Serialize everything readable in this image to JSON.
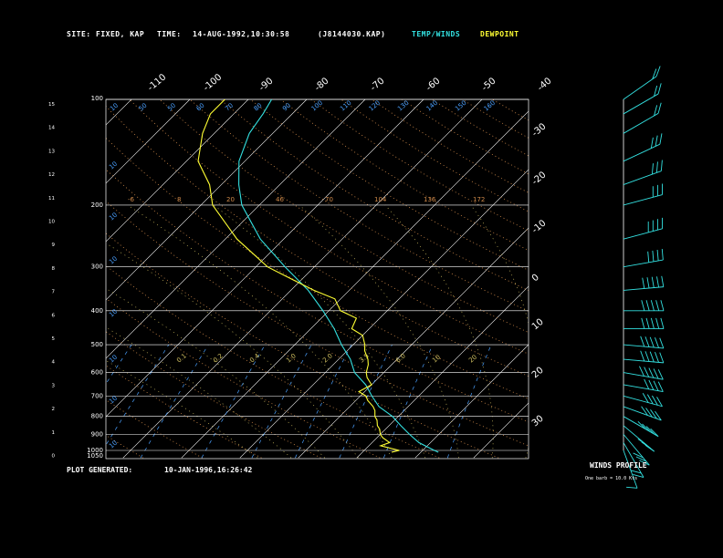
{
  "header": {
    "site_label": "SITE:",
    "site_value": "FIXED, KAP",
    "time_label": "TIME:",
    "time_value": "14-AUG-1992,10:30:58",
    "file_id": "(J8144030.KAP)",
    "legend_temp": "TEMP/WINDS",
    "legend_dew": "DEWPOINT"
  },
  "footer": {
    "generated_label": "PLOT GENERATED:",
    "generated_value": "10-JAN-1996,16:26:42",
    "winds_title": "WINDS PROFILE",
    "winds_note": "One barb = 10.0 Kts"
  },
  "colors": {
    "temperature": "#33e0e0",
    "dewpoint": "#ffff33",
    "isobar": "#ffffff",
    "isotherm": "#ffffff",
    "dry_adiabat": "#d08a4a",
    "moist_adiabat": "#d0c060",
    "mixing_ratio": "#4aa0ff",
    "wind_barb": "#33e0e0"
  },
  "chart_data": {
    "type": "line",
    "title": "",
    "xlabel": "",
    "ylabel": "",
    "pressure_levels": [
      "100",
      "200",
      "300",
      "400",
      "500",
      "600",
      "700",
      "800",
      "900",
      "1000",
      "1050"
    ],
    "km_ticks": [
      "15",
      "14",
      "13",
      "12",
      "11",
      "10",
      "9",
      "8",
      "7",
      "6",
      "5",
      "4",
      "3",
      "2",
      "1",
      "0"
    ],
    "top_temp_labels": [
      "-110",
      "-100",
      "-90",
      "-80",
      "-70",
      "-60",
      "-50",
      "-40"
    ],
    "right_temp_labels": [
      "-30",
      "-20",
      "-10",
      "0",
      "10",
      "20",
      "30"
    ],
    "dry_adiabat_labels": [
      "-6",
      "8",
      "20",
      "46",
      "70",
      "104",
      "136",
      "172"
    ],
    "mixing_ratio_top_labels": [
      "10",
      "50",
      "50",
      "60",
      "70",
      "80",
      "90",
      "100",
      "110",
      "120",
      "130",
      "140",
      "150",
      "160"
    ],
    "mixing_ratio_left_labels": [
      "10",
      "10",
      "10",
      "10",
      "10",
      "10",
      "10"
    ],
    "moist_labels": [
      "0.1",
      "0.2",
      "0.4",
      "1.0",
      "2.0",
      "3.5",
      "6.0",
      "10",
      "20"
    ],
    "series": [
      {
        "name": "TEMP/WINDS",
        "color": "#33e0e0",
        "points": [
          [
            1012,
            23
          ],
          [
            1000,
            22
          ],
          [
            950,
            18
          ],
          [
            900,
            15
          ],
          [
            850,
            12
          ],
          [
            800,
            9
          ],
          [
            750,
            5
          ],
          [
            700,
            2
          ],
          [
            650,
            -1
          ],
          [
            600,
            -5
          ],
          [
            550,
            -8
          ],
          [
            500,
            -12
          ],
          [
            450,
            -16
          ],
          [
            400,
            -21
          ],
          [
            350,
            -27
          ],
          [
            300,
            -35
          ],
          [
            250,
            -44
          ],
          [
            200,
            -53
          ],
          [
            175,
            -57
          ],
          [
            150,
            -61
          ],
          [
            125,
            -64
          ],
          [
            110,
            -65
          ],
          [
            100,
            -66
          ]
        ]
      },
      {
        "name": "DEWPOINT",
        "color": "#ffff33",
        "points": [
          [
            1012,
            15
          ],
          [
            1000,
            16
          ],
          [
            970,
            12
          ],
          [
            950,
            13
          ],
          [
            920,
            11
          ],
          [
            900,
            10
          ],
          [
            870,
            9
          ],
          [
            850,
            8
          ],
          [
            820,
            7
          ],
          [
            800,
            6
          ],
          [
            770,
            5
          ],
          [
            750,
            4
          ],
          [
            720,
            2
          ],
          [
            700,
            1
          ],
          [
            680,
            -1
          ],
          [
            650,
            0
          ],
          [
            620,
            -2
          ],
          [
            600,
            -3
          ],
          [
            570,
            -4
          ],
          [
            550,
            -5
          ],
          [
            520,
            -7
          ],
          [
            500,
            -8
          ],
          [
            470,
            -10
          ],
          [
            450,
            -13
          ],
          [
            420,
            -14
          ],
          [
            400,
            -18
          ],
          [
            370,
            -21
          ],
          [
            350,
            -26
          ],
          [
            320,
            -33
          ],
          [
            300,
            -38
          ],
          [
            250,
            -48
          ],
          [
            200,
            -58
          ],
          [
            175,
            -62
          ],
          [
            150,
            -68
          ],
          [
            125,
            -72
          ],
          [
            110,
            -74
          ],
          [
            100,
            -74
          ]
        ]
      }
    ],
    "winds": [
      {
        "p": 1000,
        "dir": 200,
        "spd": 10
      },
      {
        "p": 950,
        "dir": 210,
        "spd": 20
      },
      {
        "p": 900,
        "dir": 220,
        "spd": 30
      },
      {
        "p": 850,
        "dir": 230,
        "spd": 30
      },
      {
        "p": 800,
        "dir": 240,
        "spd": 35
      },
      {
        "p": 750,
        "dir": 250,
        "spd": 40
      },
      {
        "p": 700,
        "dir": 255,
        "spd": 40
      },
      {
        "p": 650,
        "dir": 260,
        "spd": 40
      },
      {
        "p": 600,
        "dir": 260,
        "spd": 45
      },
      {
        "p": 550,
        "dir": 265,
        "spd": 45
      },
      {
        "p": 500,
        "dir": 265,
        "spd": 50
      },
      {
        "p": 450,
        "dir": 270,
        "spd": 50
      },
      {
        "p": 400,
        "dir": 270,
        "spd": 45
      },
      {
        "p": 350,
        "dir": 275,
        "spd": 45
      },
      {
        "p": 300,
        "dir": 280,
        "spd": 40
      },
      {
        "p": 250,
        "dir": 285,
        "spd": 35
      },
      {
        "p": 200,
        "dir": 285,
        "spd": 30
      },
      {
        "p": 175,
        "dir": 290,
        "spd": 30
      },
      {
        "p": 150,
        "dir": 295,
        "spd": 25
      },
      {
        "p": 125,
        "dir": 300,
        "spd": 20
      },
      {
        "p": 110,
        "dir": 300,
        "spd": 20
      },
      {
        "p": 100,
        "dir": 305,
        "spd": 15
      }
    ]
  }
}
